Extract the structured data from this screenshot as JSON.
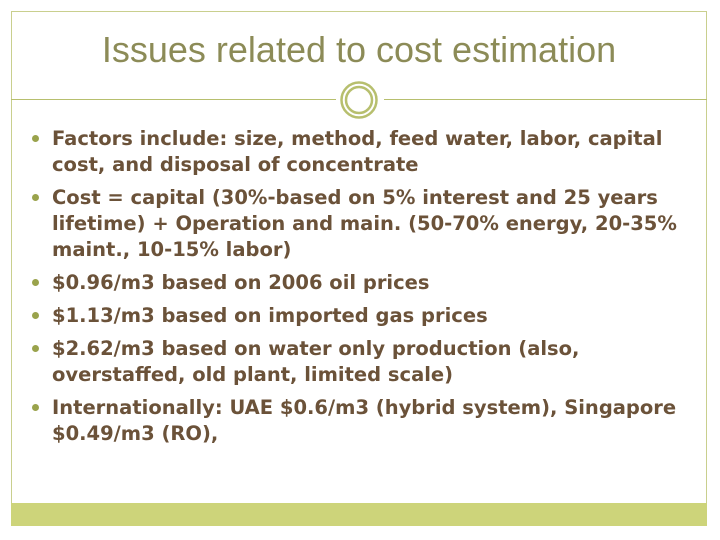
{
  "slide": {
    "title": "Issues related to cost estimation",
    "bullets": [
      "Factors include: size, method, feed water, labor, capital cost, and disposal of concentrate",
      "Cost = capital (30%-based on 5% interest and 25 years lifetime) + Operation and main. (50-70% energy, 20-35% maint., 10-15% labor)",
      "$0.96/m3 based on 2006 oil prices",
      "$1.13/m3 based on imported gas prices",
      "$2.62/m3 based on water only production (also, overstaffed, old plant, limited scale)",
      "Internationally: UAE $0.6/m3 (hybrid system), Singapore $0.49/m3 (RO),"
    ]
  },
  "colors": {
    "title": "#8c8b57",
    "body_text": "#6b5239",
    "accent": "#9aa34c",
    "frame": "#c9cf8e",
    "footer": "#cdd47a"
  },
  "icons": {
    "ornament": "double-circle-icon",
    "bullet": "bullet-dot-icon"
  }
}
